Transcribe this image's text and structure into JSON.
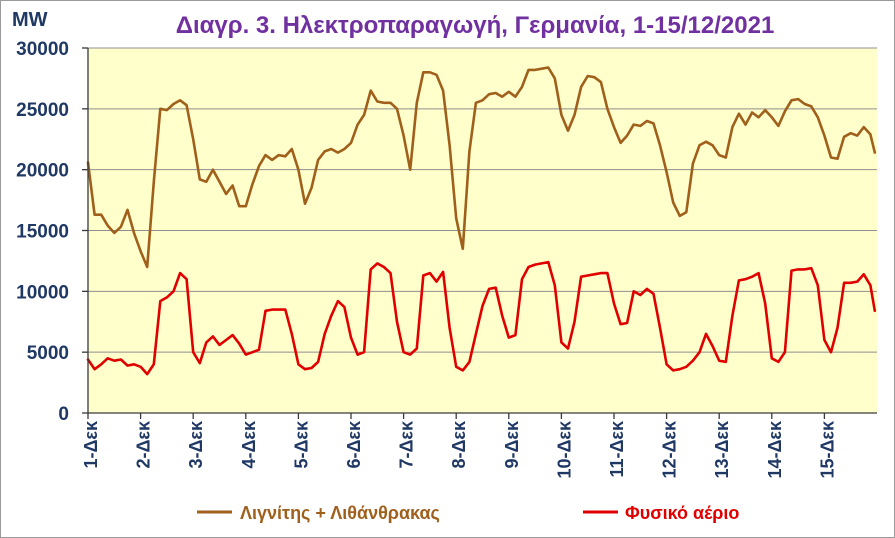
{
  "chart_data": {
    "type": "line",
    "title": "Διαγρ. 3. Ηλεκτροπαραγωγή, Γερμανία, 1-15/12/2021",
    "ylabel": "MW",
    "ylim": [
      0,
      30000
    ],
    "xlim": [
      "2021-12-01 00:00",
      "2021-12-16 00:00"
    ],
    "yticks": [
      0,
      5000,
      10000,
      15000,
      20000,
      25000,
      30000
    ],
    "xticks": [
      {
        "label": "1-Δεκ",
        "x": "2021-12-01 00:00"
      },
      {
        "label": "2-Δεκ",
        "x": "2021-12-02 00:00"
      },
      {
        "label": "3-Δεκ",
        "x": "2021-12-03 00:00"
      },
      {
        "label": "4-Δεκ",
        "x": "2021-12-04 00:00"
      },
      {
        "label": "5-Δεκ",
        "x": "2021-12-05 00:00"
      },
      {
        "label": "6-Δεκ",
        "x": "2021-12-06 00:00"
      },
      {
        "label": "7-Δεκ",
        "x": "2021-12-07 00:00"
      },
      {
        "label": "8-Δεκ",
        "x": "2021-12-08 00:00"
      },
      {
        "label": "9-Δεκ",
        "x": "2021-12-09 00:00"
      },
      {
        "label": "10-Δεκ",
        "x": "2021-12-10 00:00"
      },
      {
        "label": "11-Δεκ",
        "x": "2021-12-11 00:00"
      },
      {
        "label": "12-Δεκ",
        "x": "2021-12-12 00:00"
      },
      {
        "label": "13-Δεκ",
        "x": "2021-12-13 00:00"
      },
      {
        "label": "14-Δεκ",
        "x": "2021-12-14 00:00"
      },
      {
        "label": "15-Δεκ",
        "x": "2021-12-15 00:00"
      }
    ],
    "grid": true,
    "legend": "bottom",
    "x": [
      "2021-12-01 00:00",
      "2021-12-01 03:00",
      "2021-12-01 06:00",
      "2021-12-01 09:00",
      "2021-12-01 12:00",
      "2021-12-01 15:00",
      "2021-12-01 18:00",
      "2021-12-01 21:00",
      "2021-12-02 00:00",
      "2021-12-02 03:00",
      "2021-12-02 06:00",
      "2021-12-02 09:00",
      "2021-12-02 12:00",
      "2021-12-02 15:00",
      "2021-12-02 18:00",
      "2021-12-02 21:00",
      "2021-12-03 00:00",
      "2021-12-03 03:00",
      "2021-12-03 06:00",
      "2021-12-03 09:00",
      "2021-12-03 12:00",
      "2021-12-03 15:00",
      "2021-12-03 18:00",
      "2021-12-03 21:00",
      "2021-12-04 00:00",
      "2021-12-04 03:00",
      "2021-12-04 06:00",
      "2021-12-04 09:00",
      "2021-12-04 12:00",
      "2021-12-04 15:00",
      "2021-12-04 18:00",
      "2021-12-04 21:00",
      "2021-12-05 00:00",
      "2021-12-05 03:00",
      "2021-12-05 06:00",
      "2021-12-05 09:00",
      "2021-12-05 12:00",
      "2021-12-05 15:00",
      "2021-12-05 18:00",
      "2021-12-05 21:00",
      "2021-12-06 00:00",
      "2021-12-06 03:00",
      "2021-12-06 06:00",
      "2021-12-06 09:00",
      "2021-12-06 12:00",
      "2021-12-06 15:00",
      "2021-12-06 18:00",
      "2021-12-06 21:00",
      "2021-12-07 00:00",
      "2021-12-07 03:00",
      "2021-12-07 06:00",
      "2021-12-07 09:00",
      "2021-12-07 12:00",
      "2021-12-07 15:00",
      "2021-12-07 18:00",
      "2021-12-07 21:00",
      "2021-12-08 00:00",
      "2021-12-08 03:00",
      "2021-12-08 06:00",
      "2021-12-08 09:00",
      "2021-12-08 12:00",
      "2021-12-08 15:00",
      "2021-12-08 18:00",
      "2021-12-08 21:00",
      "2021-12-09 00:00",
      "2021-12-09 03:00",
      "2021-12-09 06:00",
      "2021-12-09 09:00",
      "2021-12-09 12:00",
      "2021-12-09 15:00",
      "2021-12-09 18:00",
      "2021-12-09 21:00",
      "2021-12-10 00:00",
      "2021-12-10 03:00",
      "2021-12-10 06:00",
      "2021-12-10 09:00",
      "2021-12-10 12:00",
      "2021-12-10 15:00",
      "2021-12-10 18:00",
      "2021-12-10 21:00",
      "2021-12-11 00:00",
      "2021-12-11 03:00",
      "2021-12-11 06:00",
      "2021-12-11 09:00",
      "2021-12-11 12:00",
      "2021-12-11 15:00",
      "2021-12-11 18:00",
      "2021-12-11 21:00",
      "2021-12-12 00:00",
      "2021-12-12 03:00",
      "2021-12-12 06:00",
      "2021-12-12 09:00",
      "2021-12-12 12:00",
      "2021-12-12 15:00",
      "2021-12-12 18:00",
      "2021-12-12 21:00",
      "2021-12-13 00:00",
      "2021-12-13 03:00",
      "2021-12-13 06:00",
      "2021-12-13 09:00",
      "2021-12-13 12:00",
      "2021-12-13 15:00",
      "2021-12-13 18:00",
      "2021-12-13 21:00",
      "2021-12-14 00:00",
      "2021-12-14 03:00",
      "2021-12-14 06:00",
      "2021-12-14 09:00",
      "2021-12-14 12:00",
      "2021-12-14 15:00",
      "2021-12-14 18:00",
      "2021-12-14 21:00",
      "2021-12-15 00:00",
      "2021-12-15 03:00",
      "2021-12-15 06:00",
      "2021-12-15 09:00",
      "2021-12-15 12:00",
      "2021-12-15 15:00",
      "2021-12-15 18:00",
      "2021-12-15 21:00",
      "2021-12-15 23:00"
    ],
    "series": [
      {
        "name": "Λιγνίτης + Λιθάνθρακας",
        "color": "#A0601C",
        "values": [
          20600,
          16300,
          16300,
          15400,
          14800,
          15300,
          16700,
          14800,
          13300,
          12000,
          19000,
          25000,
          24900,
          25400,
          25700,
          25300,
          22500,
          19200,
          19000,
          20000,
          19000,
          18000,
          18700,
          17000,
          17000,
          18800,
          20300,
          21200,
          20800,
          21200,
          21100,
          21700,
          20000,
          17200,
          18500,
          20800,
          21500,
          21700,
          21400,
          21700,
          22200,
          23700,
          24500,
          26500,
          25600,
          25500,
          25500,
          25000,
          22800,
          20000,
          25500,
          28000,
          28000,
          27800,
          26500,
          22000,
          16000,
          13500,
          21500,
          25500,
          25700,
          26200,
          26300,
          26000,
          26400,
          26000,
          26800,
          28200,
          28200,
          28300,
          28400,
          27500,
          24500,
          23200,
          24500,
          26800,
          27700,
          27600,
          27200,
          25000,
          23500,
          22200,
          22800,
          23700,
          23600,
          24000,
          23800,
          22000,
          19800,
          17300,
          16200,
          16500,
          20500,
          22000,
          22300,
          22000,
          21200,
          21000,
          23500,
          24600,
          23700,
          24700,
          24300,
          24900,
          24300,
          23600,
          24800,
          25700,
          25800,
          25400,
          25200,
          24300,
          22800,
          21000,
          20900,
          22700,
          23000,
          22800,
          23500,
          22900,
          21400
        ]
      },
      {
        "name": "Φυσικό αέριο",
        "color": "#E00000",
        "values": [
          4400,
          3600,
          4000,
          4500,
          4300,
          4400,
          3900,
          4000,
          3800,
          3200,
          4000,
          9200,
          9500,
          10000,
          11500,
          11000,
          5000,
          4100,
          5800,
          6300,
          5600,
          6000,
          6400,
          5700,
          4800,
          5000,
          5200,
          8400,
          8500,
          8500,
          8500,
          6500,
          4000,
          3600,
          3700,
          4200,
          6500,
          8000,
          9200,
          8700,
          6200,
          4800,
          5000,
          11800,
          12300,
          12000,
          11500,
          7500,
          5000,
          4800,
          5300,
          11300,
          11500,
          10800,
          11600,
          7000,
          3800,
          3500,
          4200,
          6500,
          8800,
          10200,
          10300,
          8000,
          6200,
          6400,
          11000,
          12000,
          12200,
          12300,
          12400,
          10500,
          5800,
          5300,
          7500,
          11200,
          11300,
          11400,
          11500,
          11500,
          9000,
          7300,
          7400,
          10000,
          9700,
          10200,
          9800,
          7000,
          4000,
          3500,
          3600,
          3800,
          4300,
          5000,
          6500,
          5500,
          4300,
          4200,
          8000,
          10900,
          11000,
          11200,
          11500,
          9000,
          4500,
          4200,
          5000,
          11700,
          11800,
          11800,
          11900,
          10500,
          6000,
          5000,
          7000,
          10700,
          10700,
          10800,
          11400,
          10500,
          8400
        ]
      }
    ]
  }
}
